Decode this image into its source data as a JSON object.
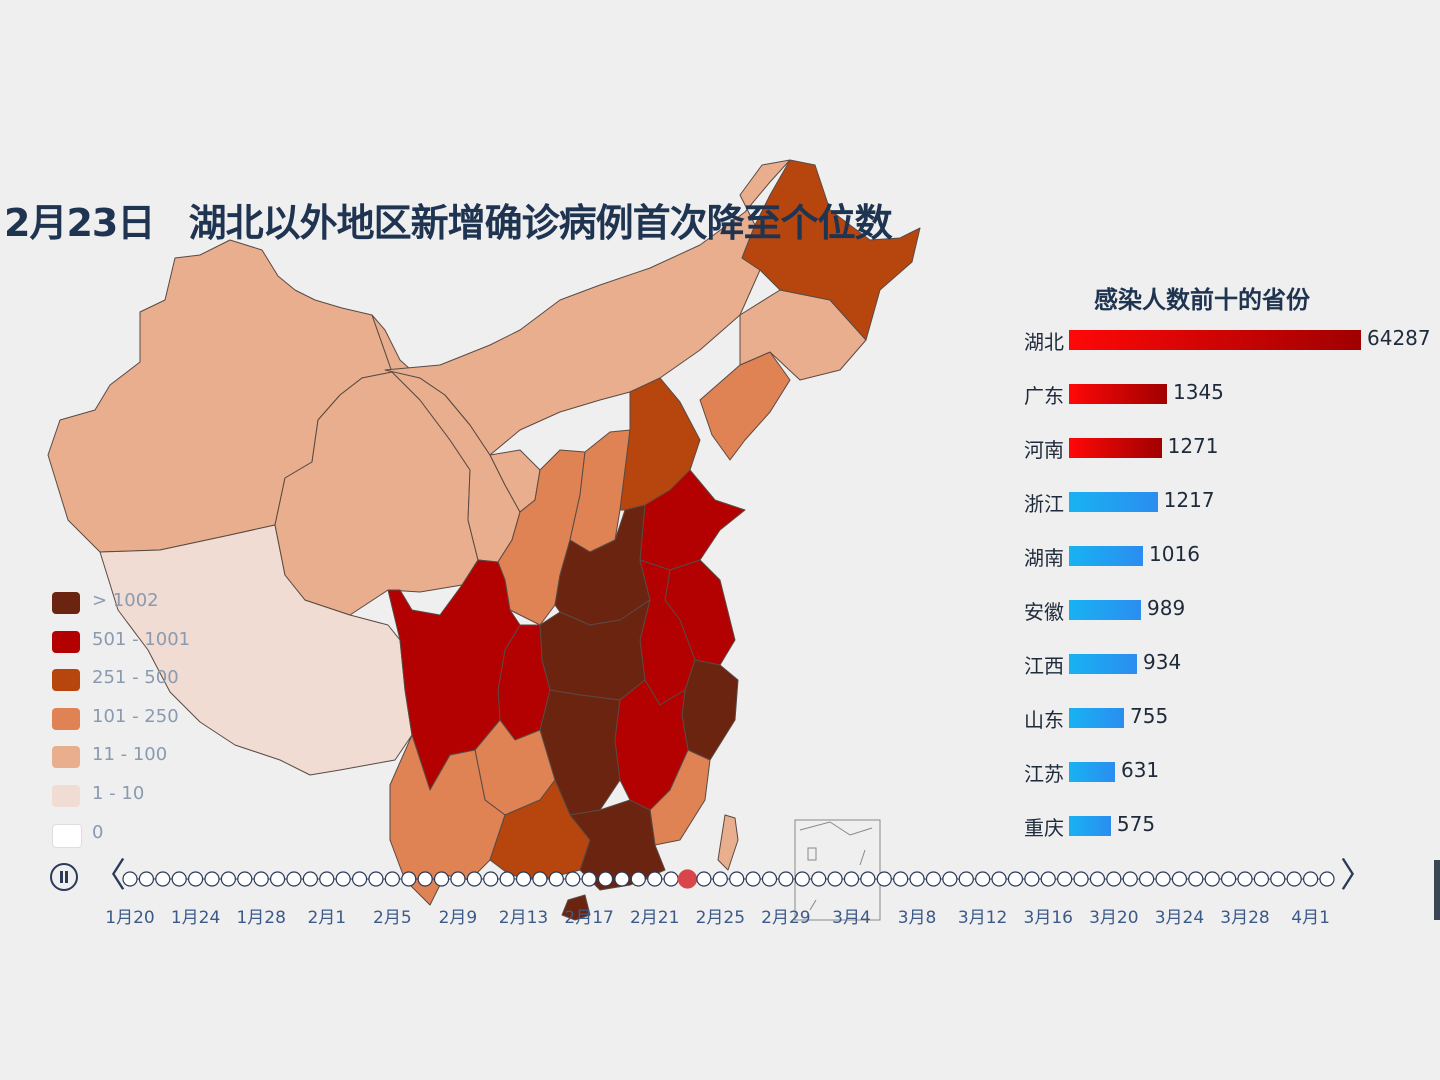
{
  "headline": {
    "date": "2月23日",
    "text": "湖北以外地区新增确诊病例首次降至个位数"
  },
  "legend": [
    {
      "label": "> 1002",
      "color": "#6b2410"
    },
    {
      "label": "501 - 1001",
      "color": "#b30000"
    },
    {
      "label": "251 - 500",
      "color": "#b7460e"
    },
    {
      "label": "101 - 250",
      "color": "#df8254"
    },
    {
      "label": "11 - 100",
      "color": "#e8ae8e"
    },
    {
      "label": "1 - 10",
      "color": "#f0dcd2"
    },
    {
      "label": "0",
      "color": "#ffffff"
    }
  ],
  "bar_chart": {
    "title": "感染人数前十的省份",
    "colors": {
      "red_start": "#ff0808",
      "red_end": "#a00000",
      "blue_start": "#18b2f2",
      "blue_end": "#2b8df0"
    },
    "items": [
      {
        "name": "湖北",
        "value": 64287,
        "color": "red"
      },
      {
        "name": "广东",
        "value": 1345,
        "color": "red"
      },
      {
        "name": "河南",
        "value": 1271,
        "color": "red"
      },
      {
        "name": "浙江",
        "value": 1217,
        "color": "blue"
      },
      {
        "name": "湖南",
        "value": 1016,
        "color": "blue"
      },
      {
        "name": "安徽",
        "value": 989,
        "color": "blue"
      },
      {
        "name": "江西",
        "value": 934,
        "color": "blue"
      },
      {
        "name": "山东",
        "value": 755,
        "color": "blue"
      },
      {
        "name": "江苏",
        "value": 631,
        "color": "blue"
      },
      {
        "name": "重庆",
        "value": 575,
        "color": "blue"
      }
    ]
  },
  "timeline": {
    "tick_labels": [
      "1月20",
      "1月24",
      "1月28",
      "2月1",
      "2月5",
      "2月9",
      "2月13",
      "2月17",
      "2月21",
      "2月25",
      "2月29",
      "3月4",
      "3月8",
      "3月12",
      "3月16",
      "3月20",
      "3月24",
      "3月28",
      "4月1"
    ],
    "total_days": 74,
    "current_index": 34,
    "current_color": "#d8464c"
  }
}
